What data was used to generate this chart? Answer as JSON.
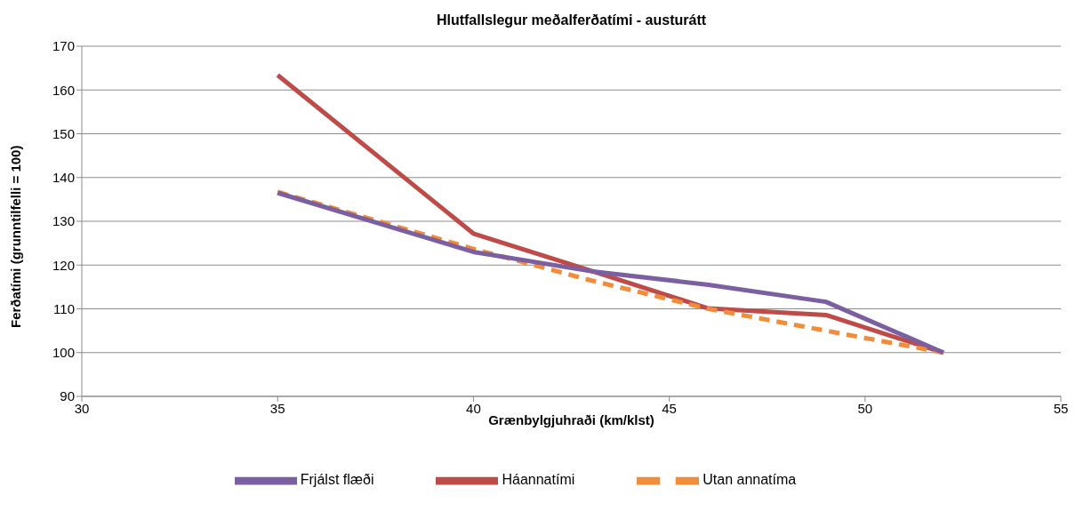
{
  "chart_data": {
    "type": "line",
    "title": "Hlutfallslegur meðalferðatími - austurátt",
    "xlabel": "Grænbylgjuhraði (km/klst)",
    "ylabel": "Ferðatími (grunntilfelli = 100)",
    "x": [
      35,
      40,
      43,
      46,
      49,
      52
    ],
    "series": [
      {
        "name": "Háannatími",
        "color": "#be4b48",
        "values": [
          163.4,
          127.2,
          118.7,
          110.1,
          108.6,
          100
        ]
      },
      {
        "name": "Utan annatíma",
        "color": "#f08c3a",
        "values": [
          136.7,
          123.7,
          116.5,
          110,
          105,
          100
        ],
        "line_style": "dashed"
      },
      {
        "name": "Frjálst flæði",
        "color": "#7b5fa0",
        "values": [
          136.5,
          123,
          118.6,
          115.5,
          111.6,
          100
        ]
      }
    ],
    "xlim": [
      30,
      55
    ],
    "xticks": [
      30,
      35,
      40,
      45,
      50,
      55
    ],
    "ylim": [
      90,
      170
    ],
    "yticks": [
      90,
      100,
      110,
      120,
      130,
      140,
      150,
      160,
      170
    ],
    "grid": "y",
    "legend": "bottom",
    "marker": "none",
    "line_style": "solid"
  }
}
